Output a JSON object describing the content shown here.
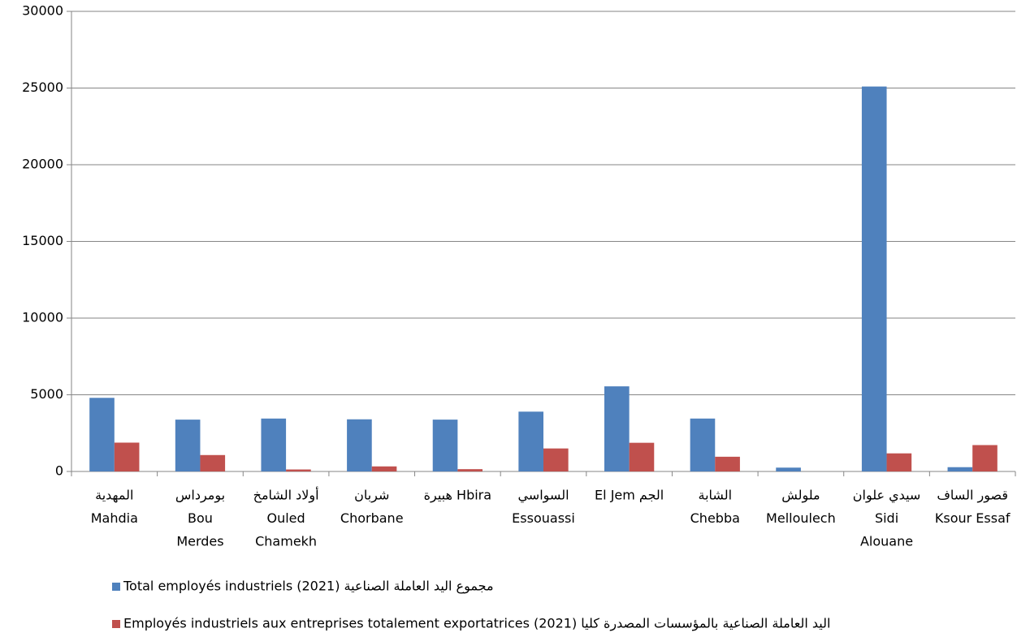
{
  "chart_data": {
    "type": "bar",
    "categories": [
      [
        "المهدية",
        "Mahdia"
      ],
      [
        "بومرداس",
        "Bou",
        "Merdes"
      ],
      [
        "أولاد الشامخ",
        "Ouled",
        "Chamekh"
      ],
      [
        "شربان",
        "Chorbane"
      ],
      [
        "هبيرة Hbira"
      ],
      [
        "السواسي",
        "Essouassi"
      ],
      [
        "El Jem الجم"
      ],
      [
        "الشابة",
        "Chebba"
      ],
      [
        "ملولش",
        "Melloulech"
      ],
      [
        "سيدي علوان",
        "Sidi",
        "Alouane"
      ],
      [
        "قصور الساف",
        "Ksour Essaf"
      ]
    ],
    "series": [
      {
        "name": "Total employés industriels (2021) مجموع اليد العاملة الصناعية",
        "color": "#4f81bd",
        "values": [
          4800,
          3380,
          3450,
          3400,
          3380,
          3900,
          5550,
          3450,
          250,
          25100,
          280
        ]
      },
      {
        "name": "Employés industriels aux entreprises totalement exportatrices (2021) اليد العاملة الصناعية بالمؤسسات المصدرة كليا",
        "color": "#c0504d",
        "values": [
          1880,
          1070,
          130,
          330,
          150,
          1500,
          1870,
          960,
          0,
          1180,
          1720
        ]
      }
    ],
    "ylim": [
      0,
      30000
    ],
    "yticks": [
      0,
      5000,
      10000,
      15000,
      20000,
      25000,
      30000
    ],
    "grid": true,
    "legend": "bottom"
  }
}
